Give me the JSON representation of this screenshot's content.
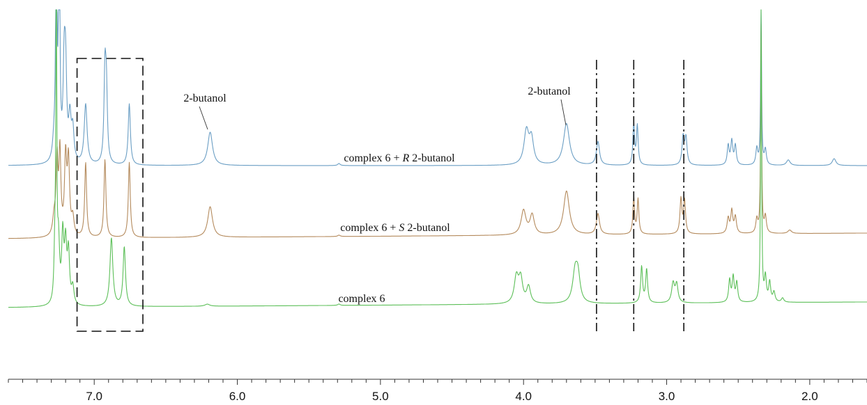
{
  "chart_data": {
    "type": "line",
    "title": "",
    "xlabel": "",
    "ylabel": "",
    "x_unit": "ppm",
    "xlim": [
      7.6,
      1.6
    ],
    "x_reversed": true,
    "ticks": [
      "7.0",
      "6.0",
      "5.0",
      "4.0",
      "3.0",
      "2.0"
    ],
    "tick_values": [
      7.0,
      6.0,
      5.0,
      4.0,
      3.0,
      2.0
    ],
    "grid": false,
    "series": [
      {
        "name": "complex 6 + R 2-butanol",
        "label": {
          "prefix": "complex 6 + ",
          "italic": "R",
          "suffix": " 2-butanol"
        },
        "color": "#6a9ec4",
        "baseline_drift": 0,
        "peaks": [
          {
            "x": 7.28,
            "h": 30,
            "w": 0.012
          },
          {
            "x": 7.265,
            "h": 500,
            "w": 0.004
          },
          {
            "x": 7.245,
            "h": 420,
            "w": 0.005
          },
          {
            "x": 7.21,
            "h": 125,
            "w": 0.009
          },
          {
            "x": 7.2,
            "h": 115,
            "w": 0.009
          },
          {
            "x": 7.17,
            "h": 60,
            "w": 0.01
          },
          {
            "x": 7.15,
            "h": 45,
            "w": 0.01
          },
          {
            "x": 7.06,
            "h": 86,
            "w": 0.012
          },
          {
            "x": 6.925,
            "h": 126,
            "w": 0.008
          },
          {
            "x": 6.915,
            "h": 98,
            "w": 0.008
          },
          {
            "x": 6.755,
            "h": 88,
            "w": 0.009
          },
          {
            "x": 6.19,
            "h": 48,
            "w": 0.02
          },
          {
            "x": 5.29,
            "h": 3,
            "w": 0.01
          },
          {
            "x": 3.98,
            "h": 48,
            "w": 0.02
          },
          {
            "x": 3.945,
            "h": 36,
            "w": 0.018
          },
          {
            "x": 3.7,
            "h": 60,
            "w": 0.025
          },
          {
            "x": 3.48,
            "h": 34,
            "w": 0.013
          },
          {
            "x": 3.23,
            "h": 58,
            "w": 0.007
          },
          {
            "x": 3.205,
            "h": 56,
            "w": 0.007
          },
          {
            "x": 2.885,
            "h": 40,
            "w": 0.009
          },
          {
            "x": 2.865,
            "h": 38,
            "w": 0.009
          },
          {
            "x": 2.57,
            "h": 28,
            "w": 0.008
          },
          {
            "x": 2.545,
            "h": 34,
            "w": 0.008
          },
          {
            "x": 2.52,
            "h": 28,
            "w": 0.008
          },
          {
            "x": 2.37,
            "h": 24,
            "w": 0.008
          },
          {
            "x": 2.34,
            "h": 235,
            "w": 0.004
          },
          {
            "x": 2.31,
            "h": 22,
            "w": 0.008
          },
          {
            "x": 2.15,
            "h": 8,
            "w": 0.015
          },
          {
            "x": 1.83,
            "h": 10,
            "w": 0.015
          }
        ]
      },
      {
        "name": "complex 6 + S 2-butanol",
        "label": {
          "prefix": "complex 6 + ",
          "italic": "S",
          "suffix": " 2-butanol"
        },
        "color": "#b48a5c",
        "baseline_drift": 8,
        "peaks": [
          {
            "x": 7.28,
            "h": 25,
            "w": 0.012
          },
          {
            "x": 7.26,
            "h": 105,
            "w": 0.008
          },
          {
            "x": 7.24,
            "h": 118,
            "w": 0.008
          },
          {
            "x": 7.2,
            "h": 110,
            "w": 0.009
          },
          {
            "x": 7.18,
            "h": 105,
            "w": 0.009
          },
          {
            "x": 7.15,
            "h": 25,
            "w": 0.01
          },
          {
            "x": 7.06,
            "h": 107,
            "w": 0.008
          },
          {
            "x": 6.925,
            "h": 112,
            "w": 0.008
          },
          {
            "x": 6.755,
            "h": 108,
            "w": 0.008
          },
          {
            "x": 6.19,
            "h": 44,
            "w": 0.02
          },
          {
            "x": 5.29,
            "h": 2,
            "w": 0.01
          },
          {
            "x": 4.0,
            "h": 35,
            "w": 0.02
          },
          {
            "x": 3.94,
            "h": 28,
            "w": 0.018
          },
          {
            "x": 3.7,
            "h": 63,
            "w": 0.024
          },
          {
            "x": 3.48,
            "h": 30,
            "w": 0.013
          },
          {
            "x": 3.23,
            "h": 52,
            "w": 0.007
          },
          {
            "x": 3.2,
            "h": 50,
            "w": 0.007
          },
          {
            "x": 2.9,
            "h": 50,
            "w": 0.008
          },
          {
            "x": 2.875,
            "h": 48,
            "w": 0.008
          },
          {
            "x": 2.57,
            "h": 22,
            "w": 0.009
          },
          {
            "x": 2.545,
            "h": 32,
            "w": 0.008
          },
          {
            "x": 2.52,
            "h": 24,
            "w": 0.009
          },
          {
            "x": 2.37,
            "h": 20,
            "w": 0.008
          },
          {
            "x": 2.34,
            "h": 300,
            "w": 0.004
          },
          {
            "x": 2.31,
            "h": 24,
            "w": 0.008
          },
          {
            "x": 2.14,
            "h": 5,
            "w": 0.015
          }
        ]
      },
      {
        "name": "complex 6",
        "label": {
          "prefix": "complex 6",
          "italic": "",
          "suffix": ""
        },
        "color": "#5cbf58",
        "baseline_drift": 8,
        "peaks": [
          {
            "x": 7.275,
            "h": 75,
            "w": 0.007
          },
          {
            "x": 7.265,
            "h": 600,
            "w": 0.003
          },
          {
            "x": 7.25,
            "h": 85,
            "w": 0.009
          },
          {
            "x": 7.22,
            "h": 95,
            "w": 0.009
          },
          {
            "x": 7.2,
            "h": 80,
            "w": 0.009
          },
          {
            "x": 7.18,
            "h": 72,
            "w": 0.009
          },
          {
            "x": 7.15,
            "h": 25,
            "w": 0.01
          },
          {
            "x": 6.88,
            "h": 98,
            "w": 0.012
          },
          {
            "x": 6.79,
            "h": 85,
            "w": 0.01
          },
          {
            "x": 6.21,
            "h": 3,
            "w": 0.02
          },
          {
            "x": 5.29,
            "h": 2,
            "w": 0.01
          },
          {
            "x": 4.05,
            "h": 38,
            "w": 0.018
          },
          {
            "x": 4.02,
            "h": 34,
            "w": 0.016
          },
          {
            "x": 3.965,
            "h": 24,
            "w": 0.016
          },
          {
            "x": 3.64,
            "h": 42,
            "w": 0.02
          },
          {
            "x": 3.62,
            "h": 36,
            "w": 0.018
          },
          {
            "x": 3.175,
            "h": 52,
            "w": 0.008
          },
          {
            "x": 3.14,
            "h": 48,
            "w": 0.008
          },
          {
            "x": 2.955,
            "h": 28,
            "w": 0.012
          },
          {
            "x": 2.93,
            "h": 26,
            "w": 0.011
          },
          {
            "x": 2.56,
            "h": 32,
            "w": 0.008
          },
          {
            "x": 2.535,
            "h": 36,
            "w": 0.008
          },
          {
            "x": 2.51,
            "h": 28,
            "w": 0.008
          },
          {
            "x": 2.34,
            "h": 420,
            "w": 0.004
          },
          {
            "x": 2.31,
            "h": 35,
            "w": 0.008
          },
          {
            "x": 2.28,
            "h": 28,
            "w": 0.008
          },
          {
            "x": 2.25,
            "h": 14,
            "w": 0.009
          },
          {
            "x": 2.19,
            "h": 6,
            "w": 0.01
          }
        ]
      }
    ],
    "annotations": [
      {
        "text": "2-butanol",
        "x": 6.19
      },
      {
        "text": "2-butanol",
        "x": 3.7
      }
    ],
    "highlight_box": {
      "x_from": 7.12,
      "x_to": 6.66
    },
    "reference_lines": [
      3.49,
      3.23,
      2.88
    ]
  }
}
